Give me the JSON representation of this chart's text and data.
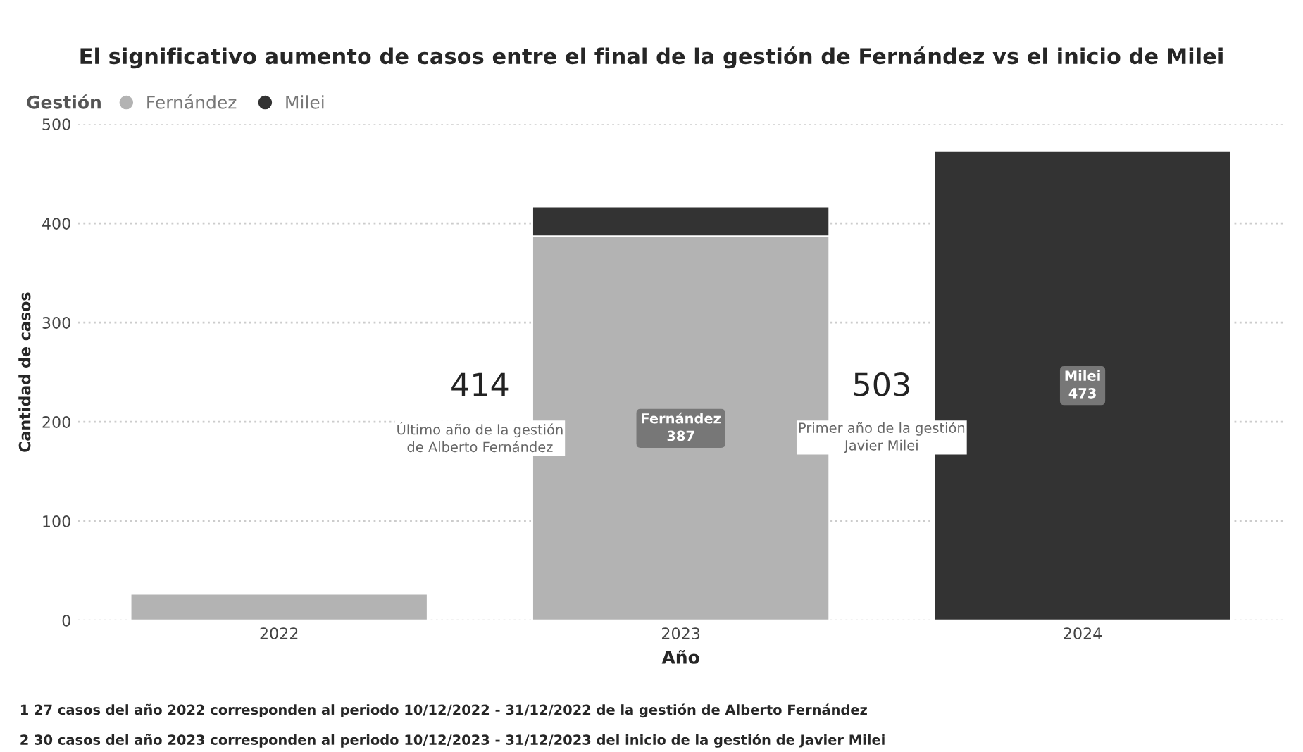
{
  "chart_data": {
    "type": "bar",
    "stacked": true,
    "title": "El significativo aumento de casos entre el final de la gestión de Fernández vs el inicio de Milei",
    "xlabel": "Año",
    "ylabel": "Cantidad de casos",
    "legend_title": "Gestión",
    "legend": "top left",
    "categories": [
      "2022",
      "2023",
      "2024"
    ],
    "series": [
      {
        "name": "Fernández",
        "color": "#b3b3b3",
        "values": [
          27,
          387,
          null
        ],
        "value_labels": [
          null,
          "Fernández\n387",
          null
        ]
      },
      {
        "name": "Milei",
        "color": "#333333",
        "values": [
          null,
          30,
          473
        ],
        "value_labels": [
          null,
          null,
          "Milei\n473"
        ]
      }
    ],
    "ylim": [
      0,
      500
    ],
    "yticks": [
      0,
      100,
      200,
      300,
      400,
      500
    ],
    "grid": "y",
    "annotations": [
      "414",
      "Último año de la gestión\nde Alberto Fernández",
      "503",
      "Primer año de la gestión\nJavier Milei",
      "1 27 casos del año 2022 corresponden al periodo 10/12/2022 - 31/12/2022 de la gestión de Alberto Fernández",
      "2 30 casos del año 2023 corresponden al periodo 10/12/2023 - 31/12/2023 del inicio de la gestión de Javier Milei"
    ]
  }
}
